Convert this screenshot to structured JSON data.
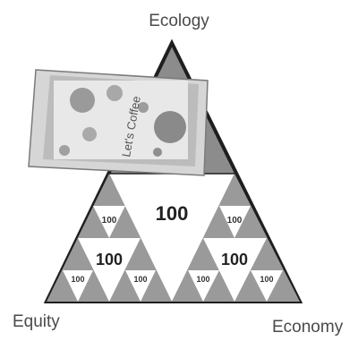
{
  "diagram": {
    "top_label": "Ecology",
    "left_label": "Equity",
    "right_label": "Economy",
    "center_value": "100",
    "mid_left_value": "100",
    "mid_right_value": "100",
    "small_values": [
      "100",
      "100",
      "100",
      "100",
      "100",
      "100"
    ],
    "cup_brand_text": "Let's Coffee",
    "colors": {
      "outline": "#1e1e1e",
      "dark_fill": "#8c8c8c",
      "mid_fill": "#b4b4b4",
      "white": "#ffffff"
    }
  }
}
